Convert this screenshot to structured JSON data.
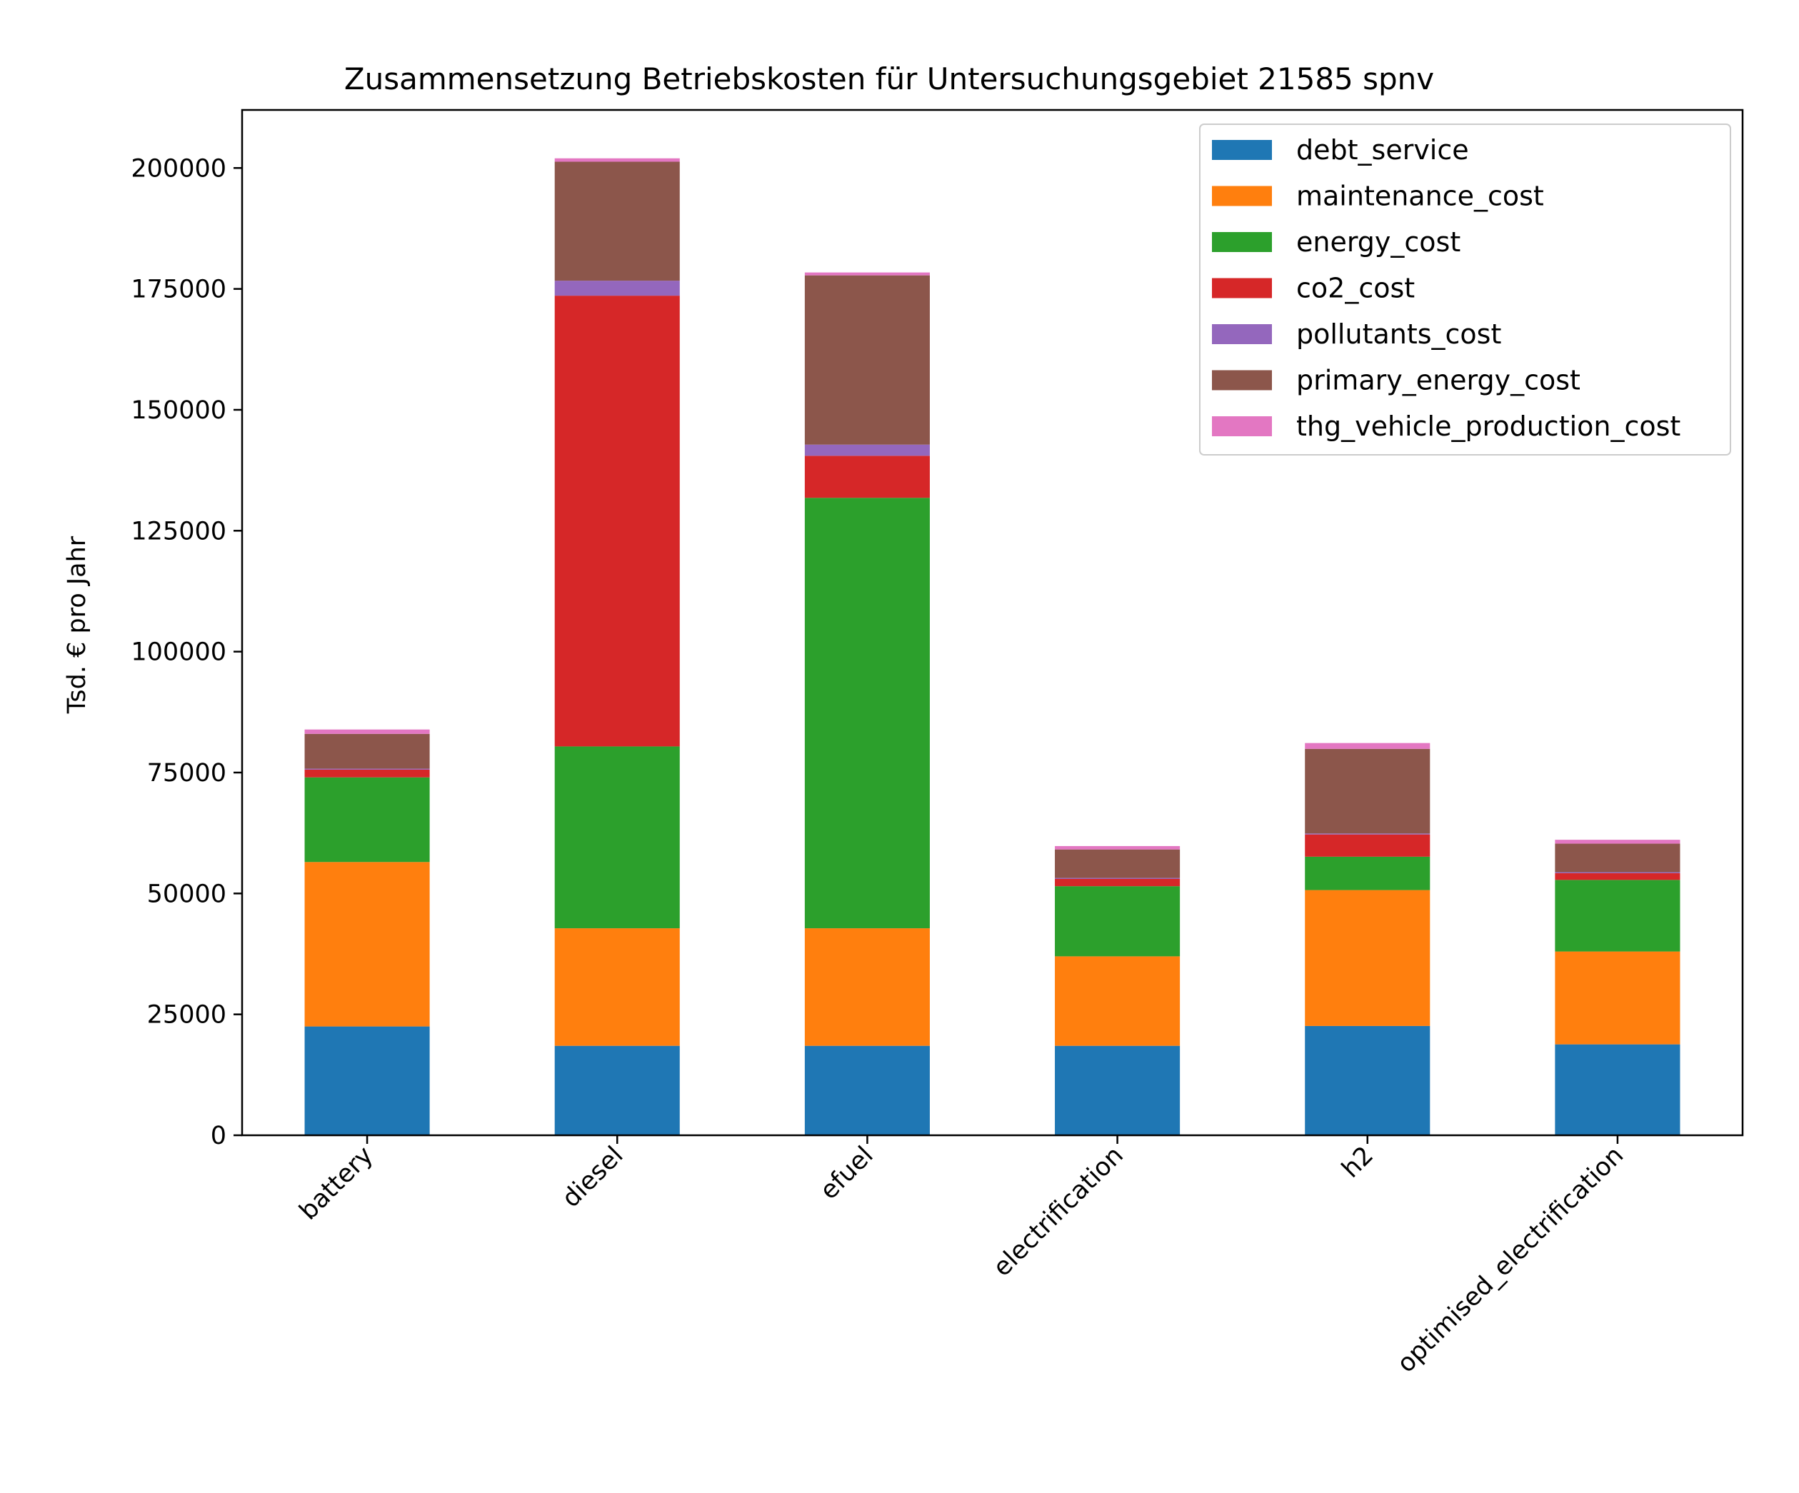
{
  "chart_data": {
    "type": "bar",
    "stacked": true,
    "title": "Zusammensetzung Betriebskosten für Untersuchungsgebiet 21585 spnv",
    "xlabel": "",
    "ylabel": "Tsd. € pro Jahr",
    "ylim": [
      0,
      212000
    ],
    "yticks": [
      0,
      25000,
      50000,
      75000,
      100000,
      125000,
      150000,
      175000,
      200000
    ],
    "ytick_labels": [
      "0",
      "25000",
      "50000",
      "75000",
      "100000",
      "125000",
      "150000",
      "175000",
      "200000"
    ],
    "categories": [
      "battery",
      "diesel",
      "efuel",
      "electrification",
      "h2",
      "optimised_electrification"
    ],
    "legend_position": "top-right",
    "grid": false,
    "series": [
      {
        "name": "debt_service",
        "color": "#1f77b4",
        "values": [
          22500,
          18500,
          18500,
          18500,
          22600,
          18800
        ]
      },
      {
        "name": "maintenance_cost",
        "color": "#ff7f0e",
        "values": [
          34000,
          24300,
          24300,
          18500,
          28100,
          19200
        ]
      },
      {
        "name": "energy_cost",
        "color": "#2ca02c",
        "values": [
          17500,
          37600,
          89000,
          14500,
          6900,
          14800
        ]
      },
      {
        "name": "co2_cost",
        "color": "#d62728",
        "values": [
          1600,
          93200,
          8700,
          1500,
          4600,
          1400
        ]
      },
      {
        "name": "pollutants_cost",
        "color": "#9467bd",
        "values": [
          200,
          3100,
          2300,
          200,
          200,
          200
        ]
      },
      {
        "name": "primary_energy_cost",
        "color": "#8c564b",
        "values": [
          7200,
          24600,
          35000,
          5900,
          17500,
          5900
        ]
      },
      {
        "name": "thg_vehicle_production_cost",
        "color": "#e377c2",
        "values": [
          900,
          700,
          600,
          700,
          1200,
          800
        ]
      }
    ]
  }
}
